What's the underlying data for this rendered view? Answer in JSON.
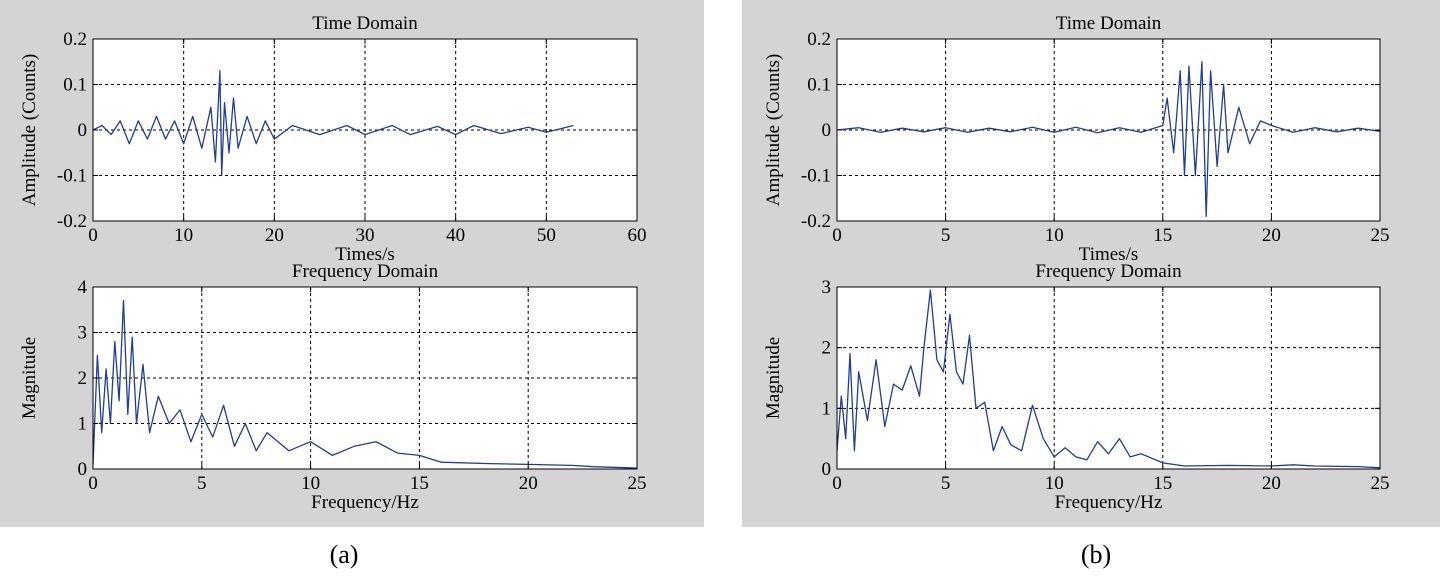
{
  "panels": [
    {
      "caption": "(a)",
      "charts": [
        {
          "type": "line",
          "title": "Time Domain",
          "xlabel": "Times/s",
          "ylabel": "Amplitude (Counts)",
          "xlim": [
            0,
            60
          ],
          "ylim": [
            -0.2,
            0.2
          ],
          "xticks": [
            0,
            10,
            20,
            30,
            40,
            50,
            60
          ],
          "yticks": [
            -0.2,
            -0.1,
            0,
            0.1,
            0.2
          ],
          "grid": true,
          "series": [
            {
              "color": "#1f3d99",
              "x": [
                0,
                1,
                2,
                3,
                4,
                5,
                6,
                7,
                8,
                9,
                10,
                11,
                12,
                13,
                13.5,
                14,
                14.2,
                14.5,
                15,
                15.5,
                16,
                17,
                18,
                19,
                20,
                22,
                25,
                28,
                30,
                33,
                35,
                38,
                40,
                42,
                45,
                48,
                50,
                52,
                53
              ],
              "y": [
                0,
                0.01,
                -0.01,
                0.02,
                -0.03,
                0.02,
                -0.02,
                0.03,
                -0.02,
                0.02,
                -0.03,
                0.03,
                -0.04,
                0.05,
                -0.07,
                0.13,
                -0.1,
                0.06,
                -0.05,
                0.07,
                -0.04,
                0.03,
                -0.03,
                0.02,
                -0.02,
                0.01,
                -0.01,
                0.01,
                -0.01,
                0.01,
                -0.01,
                0.008,
                -0.01,
                0.01,
                -0.008,
                0.006,
                -0.005,
                0.005,
                0.01
              ]
            }
          ]
        },
        {
          "type": "line",
          "title": "Frequency Domain",
          "xlabel": "Frequency/Hz",
          "ylabel": "Magnitude",
          "xlim": [
            0,
            25
          ],
          "ylim": [
            0,
            4
          ],
          "xticks": [
            0,
            5,
            10,
            15,
            20,
            25
          ],
          "yticks": [
            0,
            1,
            2,
            3,
            4
          ],
          "grid": true,
          "series": [
            {
              "color": "#1f3d99",
              "x": [
                0,
                0.2,
                0.4,
                0.6,
                0.8,
                1.0,
                1.2,
                1.4,
                1.6,
                1.8,
                2.0,
                2.3,
                2.6,
                3.0,
                3.5,
                4.0,
                4.5,
                5.0,
                5.5,
                6.0,
                6.5,
                7.0,
                7.5,
                8.0,
                9.0,
                10.0,
                11.0,
                12.0,
                13.0,
                14.0,
                15.0,
                16.0,
                18.0,
                20.0,
                22.0,
                23.0,
                25.0
              ],
              "y": [
                0.1,
                2.5,
                0.8,
                2.2,
                1.0,
                2.8,
                1.5,
                3.7,
                1.2,
                2.9,
                1.0,
                2.3,
                0.8,
                1.6,
                1.0,
                1.3,
                0.6,
                1.2,
                0.7,
                1.4,
                0.5,
                1.0,
                0.4,
                0.8,
                0.4,
                0.6,
                0.3,
                0.5,
                0.6,
                0.35,
                0.3,
                0.15,
                0.12,
                0.1,
                0.08,
                0.05,
                0.02
              ]
            }
          ]
        }
      ]
    },
    {
      "caption": "(b)",
      "charts": [
        {
          "type": "line",
          "title": "Time Domain",
          "xlabel": "Times/s",
          "ylabel": "Amplitude (Counts)",
          "xlim": [
            0,
            25
          ],
          "ylim": [
            -0.2,
            0.2
          ],
          "xticks": [
            0,
            5,
            10,
            15,
            20,
            25
          ],
          "yticks": [
            -0.2,
            -0.1,
            0,
            0.1,
            0.2
          ],
          "grid": true,
          "series": [
            {
              "color": "#1f3d99",
              "x": [
                0,
                1,
                2,
                3,
                4,
                5,
                6,
                7,
                8,
                9,
                10,
                11,
                12,
                13,
                14,
                15,
                15.2,
                15.5,
                15.8,
                16.0,
                16.2,
                16.5,
                16.8,
                17.0,
                17.2,
                17.5,
                17.8,
                18.0,
                18.5,
                19.0,
                19.5,
                20.0,
                21.0,
                22.0,
                23.0,
                24.0,
                25.0
              ],
              "y": [
                0,
                0.005,
                -0.005,
                0.004,
                -0.004,
                0.005,
                -0.005,
                0.004,
                -0.004,
                0.006,
                -0.005,
                0.006,
                -0.006,
                0.005,
                -0.005,
                0.01,
                0.07,
                -0.05,
                0.13,
                -0.1,
                0.14,
                -0.1,
                0.15,
                -0.19,
                0.13,
                -0.08,
                0.1,
                -0.05,
                0.05,
                -0.03,
                0.02,
                0.01,
                -0.005,
                0.005,
                -0.004,
                0.004,
                -0.003
              ]
            }
          ]
        },
        {
          "type": "line",
          "title": "Frequency Domain",
          "xlabel": "Frequency/Hz",
          "ylabel": "Magnitude",
          "xlim": [
            0,
            25
          ],
          "ylim": [
            0,
            3
          ],
          "xticks": [
            0,
            5,
            10,
            15,
            20,
            25
          ],
          "yticks": [
            0,
            1,
            2,
            3
          ],
          "grid": true,
          "series": [
            {
              "color": "#1f3d99",
              "x": [
                0,
                0.2,
                0.4,
                0.6,
                0.8,
                1.0,
                1.4,
                1.8,
                2.2,
                2.6,
                3.0,
                3.4,
                3.8,
                4.0,
                4.3,
                4.6,
                4.9,
                5.2,
                5.5,
                5.8,
                6.1,
                6.4,
                6.8,
                7.2,
                7.6,
                8.0,
                8.5,
                9.0,
                9.5,
                10.0,
                10.5,
                11.0,
                11.5,
                12.0,
                12.5,
                13.0,
                13.5,
                14.0,
                15.0,
                16.0,
                18.0,
                20.0,
                21.0,
                22.0,
                24.0,
                25.0
              ],
              "y": [
                0.3,
                1.2,
                0.5,
                1.9,
                0.3,
                1.6,
                0.8,
                1.8,
                0.7,
                1.4,
                1.3,
                1.7,
                1.2,
                2.0,
                2.95,
                1.8,
                1.6,
                2.55,
                1.6,
                1.4,
                2.2,
                1.0,
                1.1,
                0.3,
                0.7,
                0.4,
                0.3,
                1.05,
                0.5,
                0.2,
                0.35,
                0.2,
                0.15,
                0.45,
                0.25,
                0.5,
                0.2,
                0.25,
                0.1,
                0.05,
                0.06,
                0.05,
                0.07,
                0.05,
                0.04,
                0.02
              ]
            }
          ]
        }
      ]
    }
  ]
}
